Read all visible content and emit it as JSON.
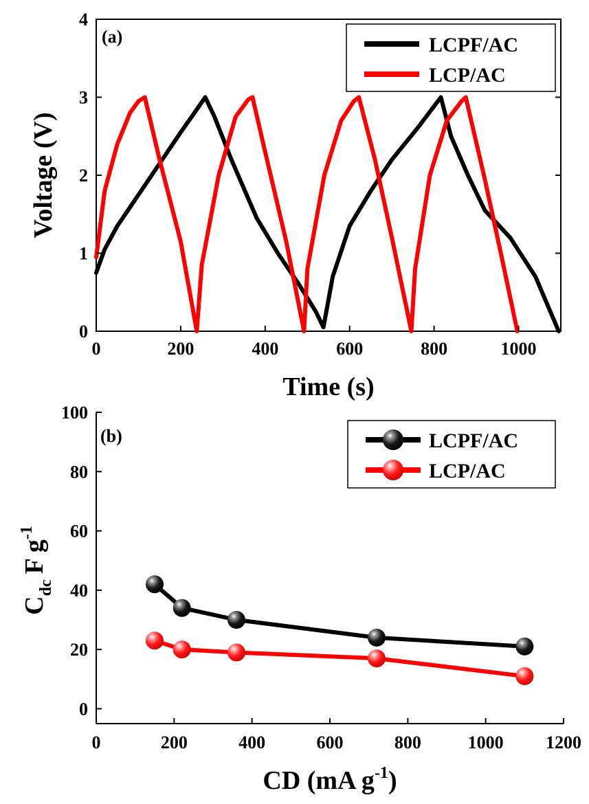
{
  "chart_data": [
    {
      "type": "line",
      "panel_label": "(a)",
      "xlabel": "Time (s)",
      "ylabel": "Voltage (V)",
      "xlim": [
        0,
        1100
      ],
      "ylim": [
        0,
        4
      ],
      "xticks": [
        "0",
        "200",
        "400",
        "600",
        "800",
        "1000"
      ],
      "yticks": [
        "0",
        "1",
        "2",
        "3",
        "4"
      ],
      "legend_position": "top-right",
      "grid": false,
      "series": [
        {
          "name": "LCPF/AC",
          "color": "#000000",
          "x": [
            0,
            20,
            50,
            100,
            150,
            200,
            230,
            258,
            280,
            320,
            380,
            430,
            480,
            520,
            538,
            560,
            600,
            650,
            700,
            760,
            816,
            840,
            880,
            920,
            980,
            1040,
            1095
          ],
          "y": [
            0.75,
            1.05,
            1.35,
            1.75,
            2.15,
            2.55,
            2.78,
            3.0,
            2.75,
            2.2,
            1.45,
            1.0,
            0.6,
            0.25,
            0.05,
            0.7,
            1.35,
            1.8,
            2.2,
            2.6,
            3.0,
            2.5,
            2.0,
            1.55,
            1.2,
            0.7,
            0.0
          ]
        },
        {
          "name": "LCP/AC",
          "color": "#ff0000",
          "x": [
            0,
            20,
            50,
            80,
            100,
            115,
            150,
            200,
            238,
            250,
            290,
            330,
            360,
            370,
            400,
            450,
            492,
            500,
            540,
            580,
            610,
            622,
            660,
            700,
            746,
            755,
            790,
            830,
            865,
            875,
            920,
            960,
            997
          ],
          "y": [
            0.95,
            1.8,
            2.4,
            2.8,
            2.95,
            3.0,
            2.2,
            1.15,
            0.0,
            0.85,
            2.0,
            2.75,
            2.97,
            3.0,
            2.3,
            1.15,
            0.0,
            0.8,
            2.0,
            2.7,
            2.95,
            3.0,
            2.2,
            1.2,
            0.0,
            0.8,
            2.0,
            2.7,
            2.95,
            3.0,
            1.95,
            0.95,
            0.0
          ]
        }
      ]
    },
    {
      "type": "line",
      "panel_label": "(b)",
      "xlabel": "CD (mA g",
      "xlabel_superscript": "-1",
      "xlabel_close": ")",
      "ylabel_main": "C",
      "ylabel_subscript": "dc",
      "ylabel_unit": "F g",
      "ylabel_superscript": "-1",
      "xlim": [
        0,
        1200
      ],
      "ylim": [
        -5,
        100
      ],
      "xticks": [
        "0",
        "200",
        "400",
        "600",
        "800",
        "1000",
        "1200"
      ],
      "yticks": [
        "0",
        "20",
        "40",
        "60",
        "80",
        "100"
      ],
      "legend_position": "top-right",
      "grid": false,
      "series": [
        {
          "name": "LCPF/AC",
          "color": "#000000",
          "x": [
            150,
            220,
            360,
            720,
            1100
          ],
          "y": [
            42,
            34,
            30,
            24,
            21
          ]
        },
        {
          "name": "LCP/AC",
          "color": "#ff0000",
          "x": [
            150,
            220,
            360,
            720,
            1100
          ],
          "y": [
            23,
            20,
            19,
            17,
            11
          ]
        }
      ]
    }
  ]
}
